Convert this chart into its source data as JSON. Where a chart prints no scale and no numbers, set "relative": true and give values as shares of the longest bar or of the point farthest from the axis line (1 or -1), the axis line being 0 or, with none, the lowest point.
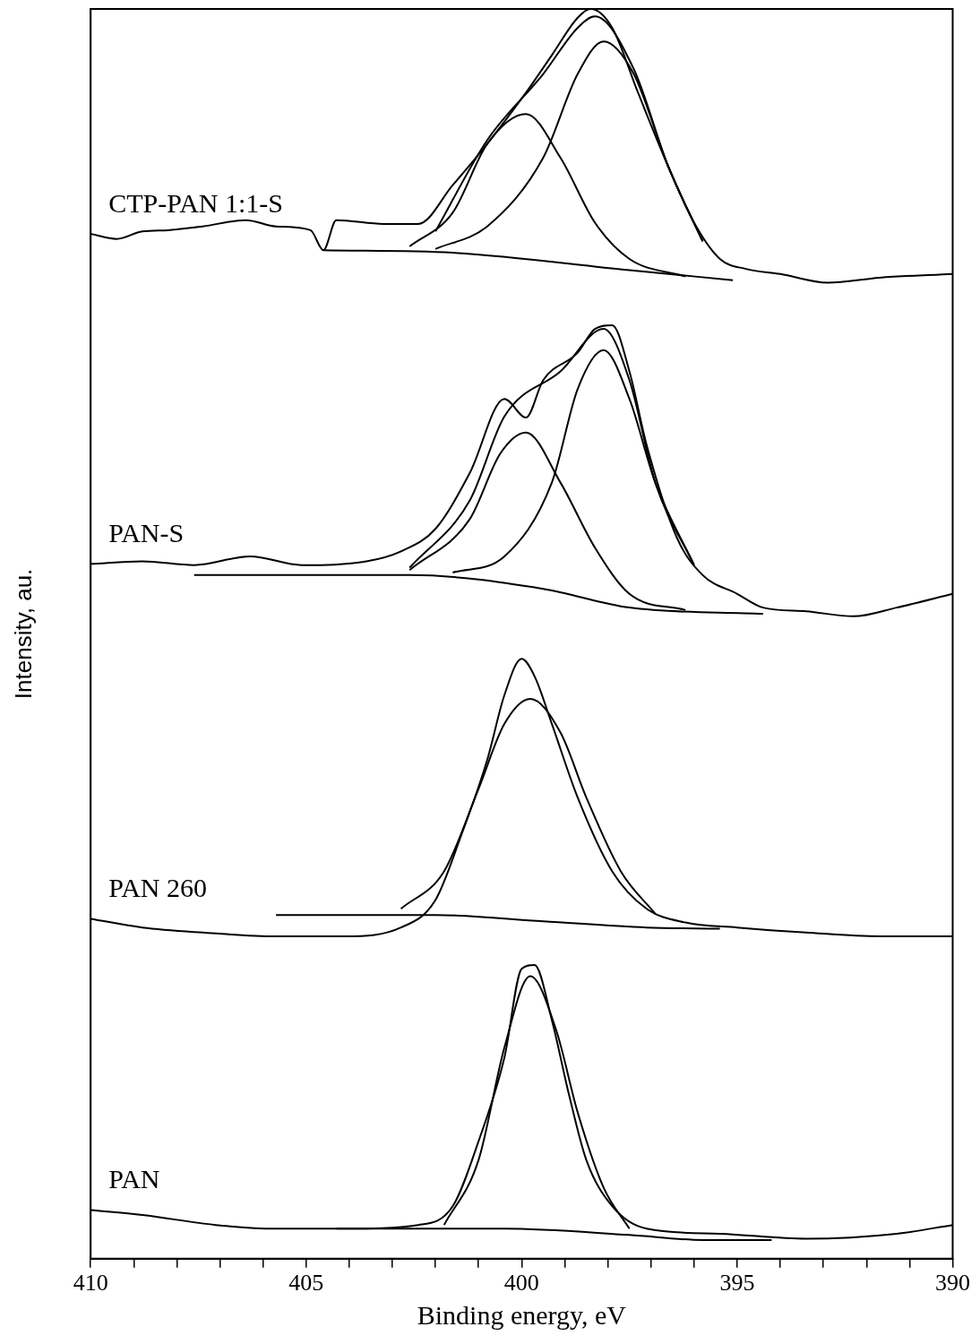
{
  "chart_data": {
    "type": "line",
    "relative": true,
    "xlabel": "Binding energy, eV",
    "ylabel": "Intensity, au.",
    "xlim": [
      410,
      390
    ],
    "xticks": [
      410,
      {
        "value": 409,
        "label": null
      },
      {
        "value": 408,
        "label": null
      },
      {
        "value": 407,
        "label": null
      },
      {
        "value": 406,
        "label": null
      },
      405,
      {
        "value": 404,
        "label": null
      },
      {
        "value": 403,
        "label": null
      },
      {
        "value": 402,
        "label": null
      },
      {
        "value": 401,
        "label": null
      },
      400,
      {
        "value": 399,
        "label": null
      },
      {
        "value": 398,
        "label": null
      },
      {
        "value": 397,
        "label": null
      },
      {
        "value": 396,
        "label": null
      },
      395,
      {
        "value": 394,
        "label": null
      },
      {
        "value": 393,
        "label": null
      },
      {
        "value": 392,
        "label": null
      },
      {
        "value": 391,
        "label": null
      },
      390
    ],
    "grid": false,
    "legend": false,
    "marker": "none",
    "line_style": "solid",
    "series": [
      {
        "name": "CTP-PAN 1:1-S",
        "color": "#000000",
        "x": [
          410,
          409.4,
          408.8,
          408.2,
          407.4,
          406.4,
          405.7,
          404.9,
          404.6,
          404.3,
          403.2,
          402.4,
          401.6,
          400.8,
          399.9,
          399.3,
          398.7,
          398.4,
          397.9,
          397.3,
          396.6,
          396.0,
          395.4,
          394.8,
          394.0,
          392.9,
          391.7,
          390
        ],
        "values": [
          0.82,
          0.816,
          0.822,
          0.823,
          0.826,
          0.831,
          0.826,
          0.823,
          0.807,
          0.831,
          0.828,
          0.828,
          0.859,
          0.892,
          0.933,
          0.963,
          0.993,
          1.0,
          0.985,
          0.933,
          0.874,
          0.829,
          0.8,
          0.792,
          0.788,
          0.781,
          0.785,
          0.788
        ]
      },
      {
        "color": "#000000",
        "x": [
          404.6,
          401.6,
          397.5,
          395.1
        ],
        "values": [
          0.807,
          0.805,
          0.791,
          0.783
        ]
      },
      {
        "color": "#000000",
        "x": [
          402.6,
          401.6,
          400.8,
          399.9,
          399.1,
          398.3,
          397.5,
          396.2
        ],
        "values": [
          0.81,
          0.837,
          0.892,
          0.916,
          0.881,
          0.829,
          0.8,
          0.786
        ]
      },
      {
        "color": "#000000",
        "x": [
          402.0,
          400.8,
          399.5,
          398.7,
          398.1,
          397.4,
          396.6,
          395.8
        ],
        "values": [
          0.808,
          0.826,
          0.881,
          0.948,
          0.974,
          0.948,
          0.874,
          0.814
        ]
      },
      {
        "color": "#000000",
        "x": [
          402.0,
          400.8,
          399.5,
          398.7,
          398.3,
          397.4,
          396.6,
          395.8
        ],
        "values": [
          0.822,
          0.895,
          0.948,
          0.985,
          0.994,
          0.952,
          0.874,
          0.814
        ]
      },
      {
        "name": "PAN-S",
        "color": "#000000",
        "x": [
          410,
          408.8,
          407.6,
          406.3,
          405.1,
          403.6,
          402.8,
          402.0,
          401.2,
          400.4,
          399.9,
          399.5,
          398.7,
          398.3,
          397.9,
          397.5,
          397.1,
          396.4,
          395.8,
          395.0,
          394.4,
          393.4,
          392.3,
          391.3,
          390
        ],
        "values": [
          0.556,
          0.558,
          0.555,
          0.562,
          0.555,
          0.558,
          0.566,
          0.584,
          0.629,
          0.688,
          0.673,
          0.703,
          0.725,
          0.744,
          0.747,
          0.71,
          0.651,
          0.577,
          0.547,
          0.532,
          0.521,
          0.518,
          0.514,
          0.521,
          0.532
        ]
      },
      {
        "color": "#000000",
        "x": [
          407.6,
          402.6,
          399.5,
          397.5,
          394.4
        ],
        "values": [
          0.547,
          0.547,
          0.536,
          0.521,
          0.516
        ]
      },
      {
        "color": "#000000",
        "x": [
          402.6,
          401.2,
          400.5,
          399.9,
          399.1,
          398.3,
          397.5,
          396.2
        ],
        "values": [
          0.551,
          0.592,
          0.644,
          0.661,
          0.621,
          0.569,
          0.532,
          0.519
        ]
      },
      {
        "color": "#000000",
        "x": [
          401.6,
          400.4,
          399.3,
          398.7,
          398.1,
          397.5,
          396.9,
          396.0
        ],
        "values": [
          0.549,
          0.562,
          0.621,
          0.696,
          0.727,
          0.688,
          0.621,
          0.555
        ]
      },
      {
        "color": "#000000",
        "x": [
          402.6,
          401.2,
          400.4,
          399.1,
          398.1,
          397.5,
          396.9,
          396.0
        ],
        "values": [
          0.553,
          0.607,
          0.674,
          0.71,
          0.744,
          0.703,
          0.621,
          0.555
        ]
      },
      {
        "name": "PAN 260",
        "color": "#000000",
        "x": [
          410,
          408.8,
          407.4,
          405.7,
          404.1,
          402.8,
          402.0,
          401.4,
          400.8,
          400.4,
          400.0,
          399.7,
          399.3,
          398.7,
          397.9,
          397.1,
          396.2,
          395.0,
          393.4,
          391.7,
          390
        ],
        "values": [
          0.272,
          0.265,
          0.261,
          0.258,
          0.258,
          0.265,
          0.287,
          0.339,
          0.399,
          0.451,
          0.48,
          0.466,
          0.428,
          0.369,
          0.31,
          0.28,
          0.269,
          0.265,
          0.261,
          0.258,
          0.258
        ]
      },
      {
        "color": "#000000",
        "x": [
          405.7,
          402.0,
          399.5,
          397.1,
          395.4
        ],
        "values": [
          0.275,
          0.275,
          0.27,
          0.265,
          0.264
        ]
      },
      {
        "color": "#000000",
        "x": [
          402.8,
          401.8,
          401.0,
          400.4,
          399.8,
          399.1,
          398.5,
          397.7,
          396.9
        ],
        "values": [
          0.28,
          0.31,
          0.376,
          0.428,
          0.448,
          0.421,
          0.369,
          0.31,
          0.276
        ]
      },
      {
        "name": "PAN",
        "color": "#000000",
        "x": [
          410,
          408.8,
          407.1,
          405.7,
          404.1,
          402.4,
          401.6,
          401.0,
          400.4,
          400.0,
          399.7,
          399.3,
          398.9,
          398.5,
          397.9,
          397.1,
          395.4,
          393.4,
          391.3,
          390
        ],
        "values": [
          0.039,
          0.035,
          0.027,
          0.024,
          0.024,
          0.027,
          0.042,
          0.094,
          0.161,
          0.232,
          0.235,
          0.191,
          0.131,
          0.079,
          0.042,
          0.024,
          0.02,
          0.016,
          0.02,
          0.027
        ]
      },
      {
        "color": "#000000",
        "x": [
          404.3,
          400.4,
          397.5,
          395.8,
          394.2
        ],
        "values": [
          0.024,
          0.024,
          0.019,
          0.015,
          0.015
        ]
      },
      {
        "color": "#000000",
        "x": [
          401.8,
          401.0,
          400.4,
          399.8,
          399.2,
          398.7,
          398.1,
          397.5
        ],
        "values": [
          0.027,
          0.079,
          0.169,
          0.226,
          0.183,
          0.117,
          0.057,
          0.024
        ]
      }
    ]
  }
}
